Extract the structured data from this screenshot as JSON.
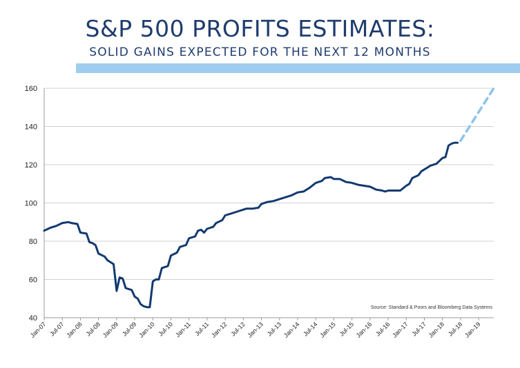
{
  "title": "S&P 500 PROFITS ESTIMATES:",
  "subtitle": "SOLID GAINS EXPECTED FOR THE NEXT 12 MONTHS",
  "colors": {
    "title": "#1f3c6e",
    "band": "#9fcdee",
    "actual_line": "#12396f",
    "forecast_line": "#8cc4ea",
    "grid": "#d0d0d0"
  },
  "chart_data": {
    "type": "line",
    "title": "",
    "xlabel": "",
    "ylabel": "",
    "ylim": [
      40,
      160
    ],
    "yticks": [
      40,
      60,
      80,
      100,
      120,
      140,
      160
    ],
    "grid": "horizontal",
    "x_tick_labels": [
      "Jan-07",
      "Jul-07",
      "Jan-08",
      "Jul-08",
      "Jan-09",
      "Jul-09",
      "Jan-10",
      "Jul-10",
      "Jan-11",
      "Jul-11",
      "Jan-12",
      "Jul-12",
      "Jan-13",
      "Jul-13",
      "Jan-14",
      "Jul-14",
      "Jan-15",
      "Jul-15",
      "Jan-16",
      "Jul-16",
      "Jan-17",
      "Jul-17",
      "Jan-18",
      "Jul-18",
      "Jan-19"
    ],
    "x_start": "Jan-07",
    "x_end": "Jun-19",
    "source_note": "Source:  Standard & Poors and Bloomberg Data Systems",
    "series": [
      {
        "style": "solid",
        "points": [
          [
            "Jan-07",
            85.5
          ],
          [
            "Mar-07",
            87
          ],
          [
            "May-07",
            88
          ],
          [
            "Jul-07",
            89.5
          ],
          [
            "Sep-07",
            90
          ],
          [
            "Oct-07",
            89.5
          ],
          [
            "Dec-07",
            89
          ],
          [
            "Jan-08",
            84.5
          ],
          [
            "Mar-08",
            84
          ],
          [
            "Apr-08",
            79.5
          ],
          [
            "May-08",
            79
          ],
          [
            "Jun-08",
            78
          ],
          [
            "Jul-08",
            73.5
          ],
          [
            "Sep-08",
            72
          ],
          [
            "Oct-08",
            70
          ],
          [
            "Nov-08",
            69
          ],
          [
            "Dec-08",
            68
          ],
          [
            "Jan-09",
            54
          ],
          [
            "Feb-09",
            61
          ],
          [
            "Mar-09",
            60.5
          ],
          [
            "Apr-09",
            55.5
          ],
          [
            "May-09",
            55
          ],
          [
            "Jun-09",
            54.5
          ],
          [
            "Jul-09",
            51
          ],
          [
            "Aug-09",
            50
          ],
          [
            "Sep-09",
            47
          ],
          [
            "Oct-09",
            46
          ],
          [
            "Nov-09",
            45.5
          ],
          [
            "Dec-09",
            45.5
          ],
          [
            "Jan-10",
            59
          ],
          [
            "Feb-10",
            60
          ],
          [
            "Mar-10",
            60
          ],
          [
            "Apr-10",
            66
          ],
          [
            "Jun-10",
            67
          ],
          [
            "Jul-10",
            72.5
          ],
          [
            "Sep-10",
            74
          ],
          [
            "Oct-10",
            77
          ],
          [
            "Dec-10",
            78
          ],
          [
            "Jan-11",
            81.5
          ],
          [
            "Mar-11",
            82.5
          ],
          [
            "Apr-11",
            85.5
          ],
          [
            "May-11",
            86
          ],
          [
            "Jun-11",
            84.5
          ],
          [
            "Jul-11",
            86.5
          ],
          [
            "Sep-11",
            87.5
          ],
          [
            "Oct-11",
            89.5
          ],
          [
            "Dec-11",
            91
          ],
          [
            "Jan-12",
            93.5
          ],
          [
            "Mar-12",
            94.5
          ],
          [
            "May-12",
            95.5
          ],
          [
            "Jul-12",
            96.5
          ],
          [
            "Aug-12",
            97
          ],
          [
            "Oct-12",
            97
          ],
          [
            "Dec-12",
            97.5
          ],
          [
            "Jan-13",
            99.5
          ],
          [
            "Mar-13",
            100.5
          ],
          [
            "May-13",
            101
          ],
          [
            "Jul-13",
            102
          ],
          [
            "Sep-13",
            103
          ],
          [
            "Nov-13",
            104
          ],
          [
            "Jan-14",
            105.5
          ],
          [
            "Mar-14",
            106
          ],
          [
            "May-14",
            108
          ],
          [
            "Jul-14",
            110.5
          ],
          [
            "Sep-14",
            111.5
          ],
          [
            "Oct-14",
            113
          ],
          [
            "Dec-14",
            113.5
          ],
          [
            "Jan-15",
            112.5
          ],
          [
            "Mar-15",
            112.5
          ],
          [
            "May-15",
            111
          ],
          [
            "Jul-15",
            110.5
          ],
          [
            "Sep-15",
            109.5
          ],
          [
            "Nov-15",
            109
          ],
          [
            "Jan-16",
            108.5
          ],
          [
            "Mar-16",
            107
          ],
          [
            "May-16",
            106.5
          ],
          [
            "Jun-16",
            106
          ],
          [
            "Jul-16",
            106.5
          ],
          [
            "Sep-16",
            106.5
          ],
          [
            "Nov-16",
            106.5
          ],
          [
            "Jan-17",
            109
          ],
          [
            "Feb-17",
            110
          ],
          [
            "Mar-17",
            113
          ],
          [
            "May-17",
            114.5
          ],
          [
            "Jun-17",
            116.5
          ],
          [
            "Jul-17",
            117.5
          ],
          [
            "Aug-17",
            118.5
          ],
          [
            "Sep-17",
            119.5
          ],
          [
            "Nov-17",
            120.5
          ],
          [
            "Dec-17",
            122
          ],
          [
            "Jan-18",
            123.5
          ],
          [
            "Feb-18",
            124
          ],
          [
            "Mar-18",
            130
          ],
          [
            "Apr-18",
            131
          ],
          [
            "May-18",
            131.5
          ],
          [
            "Jun-18",
            131.5
          ]
        ]
      },
      {
        "style": "dashed",
        "points": [
          [
            "Jul-18",
            132.5
          ],
          [
            "Jun-19",
            160
          ]
        ]
      }
    ]
  }
}
